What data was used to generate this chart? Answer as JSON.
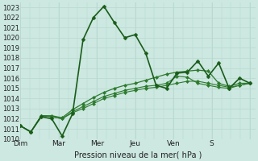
{
  "xlabel": "Pression niveau de la mer( hPa )",
  "ylim": [
    1010,
    1023.5
  ],
  "yticks": [
    1010,
    1011,
    1012,
    1013,
    1014,
    1015,
    1016,
    1017,
    1018,
    1019,
    1020,
    1021,
    1022,
    1023
  ],
  "day_labels": [
    "Dim",
    "Mar",
    "Mer",
    "Jeu",
    "Ven",
    "S"
  ],
  "background_color": "#cce8e0",
  "grid_color_h": "#b8d8d0",
  "grid_color_v": "#b8d8d0",
  "line_color_dark": "#1a5c1a",
  "line_color_medium": "#2d7a2d",
  "series1": [
    1011.3,
    1010.7,
    1012.2,
    1012.0,
    1010.3,
    1012.5,
    1019.8,
    1022.0,
    1023.1,
    1021.5,
    1020.0,
    1020.3,
    1018.5,
    1015.3,
    1015.0,
    1016.5,
    1016.6,
    1017.7,
    1016.2,
    1017.5,
    1015.0,
    1016.0,
    1015.5
  ],
  "series2": [
    1011.3,
    1010.7,
    1012.3,
    1012.3,
    1012.1,
    1012.9,
    1013.5,
    1014.1,
    1014.6,
    1015.0,
    1015.3,
    1015.5,
    1015.8,
    1016.1,
    1016.4,
    1016.6,
    1016.7,
    1016.8,
    1016.7,
    1015.5,
    1015.2,
    1015.5,
    1015.5
  ],
  "series3": [
    1011.3,
    1010.7,
    1012.3,
    1012.2,
    1012.0,
    1012.7,
    1013.2,
    1013.7,
    1014.2,
    1014.5,
    1014.8,
    1015.0,
    1015.2,
    1015.3,
    1015.5,
    1016.2,
    1016.1,
    1015.5,
    1015.3,
    1015.1,
    1015.0,
    1015.3,
    1015.5
  ],
  "series4": [
    1011.3,
    1010.7,
    1012.3,
    1012.2,
    1012.0,
    1012.6,
    1013.0,
    1013.5,
    1014.0,
    1014.3,
    1014.6,
    1014.8,
    1015.0,
    1015.1,
    1015.3,
    1015.5,
    1015.7,
    1015.7,
    1015.5,
    1015.3,
    1015.1,
    1015.3,
    1015.5
  ],
  "n_days": 6,
  "pts_per_day": 4,
  "extra_pt": 3,
  "marker": "D",
  "markersize_dark": 2.5,
  "markersize_medium": 2.2
}
